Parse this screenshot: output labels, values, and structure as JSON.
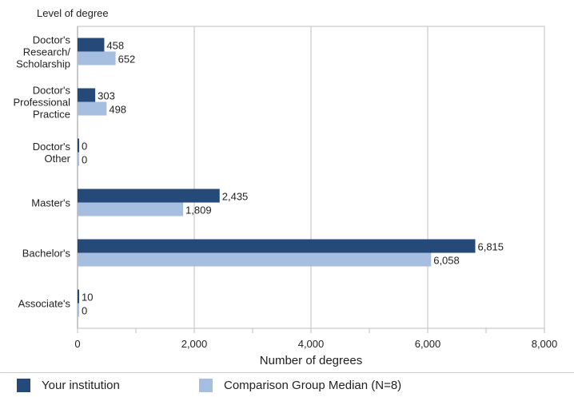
{
  "chart_data": {
    "type": "bar",
    "orientation": "horizontal",
    "y_axis_title": "Level of degree",
    "xlabel": "Number of degrees",
    "xlim": [
      0,
      8000
    ],
    "x_ticks": [
      0,
      2000,
      4000,
      6000,
      8000
    ],
    "x_tick_labels": [
      "0",
      "2,000",
      "4,000",
      "6,000",
      "8,000"
    ],
    "grid": true,
    "legend_position": "bottom",
    "categories": [
      [
        "Doctor's",
        "Research/",
        "Scholarship"
      ],
      [
        "Doctor's",
        "Professional",
        "Practice"
      ],
      [
        "Doctor's",
        "Other"
      ],
      [
        "Master's"
      ],
      [
        "Bachelor's"
      ],
      [
        "Associate's"
      ]
    ],
    "series": [
      {
        "name": "Your institution",
        "color": "#254a7a",
        "values": [
          458,
          303,
          0,
          2435,
          6815,
          10
        ],
        "labels": [
          "458",
          "303",
          "0",
          "2,435",
          "6,815",
          "10"
        ]
      },
      {
        "name": "Comparison Group Median (N=8)",
        "color": "#a6bedf",
        "values": [
          652,
          498,
          0,
          1809,
          6058,
          0
        ],
        "labels": [
          "652",
          "498",
          "0",
          "1,809",
          "6,058",
          "0"
        ]
      }
    ]
  },
  "legend": {
    "items": [
      {
        "label": "Your institution",
        "color": "#254a7a"
      },
      {
        "label": "Comparison Group Median (N=8)",
        "color": "#a6bedf"
      }
    ]
  }
}
